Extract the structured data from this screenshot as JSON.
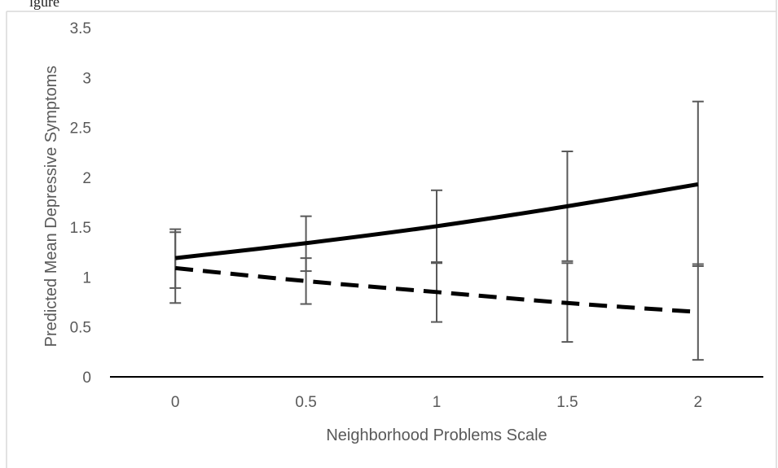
{
  "chart_data": {
    "type": "line",
    "title": "",
    "partial_title_text": "igure",
    "xlabel": "Neighborhood Problems Scale",
    "ylabel": "Predicted Mean Depressive Symptoms",
    "x_ticks": [
      "0",
      "0.5",
      "1",
      "1.5",
      "2"
    ],
    "y_ticks": [
      "0",
      "0.5",
      "1",
      "1.5",
      "2",
      "2.5",
      "3",
      "3.5"
    ],
    "x": [
      0,
      0.5,
      1,
      1.5,
      2
    ],
    "xlim": [
      -0.25,
      2.25
    ],
    "ylim": [
      0,
      3.5
    ],
    "grid": false,
    "legend": "none",
    "series": [
      {
        "style": "solid",
        "color": "#000000",
        "values": [
          1.19,
          1.34,
          1.51,
          1.71,
          1.93
        ],
        "error_low": [
          0.89,
          1.06,
          1.14,
          1.16,
          1.11
        ],
        "error_high": [
          1.48,
          1.61,
          1.87,
          2.26,
          2.76
        ]
      },
      {
        "style": "dashed",
        "color": "#000000",
        "values": [
          1.09,
          0.96,
          0.85,
          0.74,
          0.65
        ],
        "error_low": [
          0.74,
          0.73,
          0.55,
          0.35,
          0.17
        ],
        "error_high": [
          1.45,
          1.19,
          1.15,
          1.14,
          1.13
        ]
      }
    ],
    "error_bar_color": "#595959"
  }
}
